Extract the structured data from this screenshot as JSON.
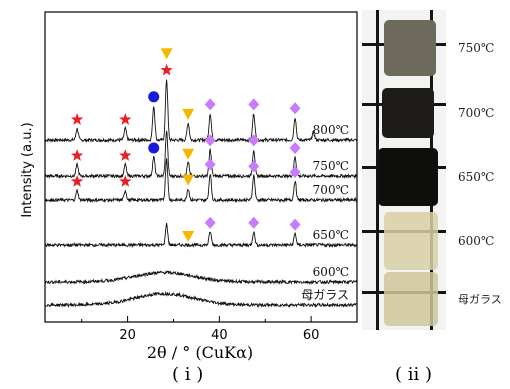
{
  "chart_data": {
    "type": "line",
    "ylabel": "Intensity (a.u.)",
    "xlabel": "2θ / ° (CuKα)",
    "xlim": [
      2,
      70
    ],
    "xticks": [
      20,
      40,
      60
    ],
    "series": [
      {
        "name": "800℃",
        "peaks": [
          {
            "x": 9,
            "h": 0.3
          },
          {
            "x": 19.5,
            "h": 0.3
          },
          {
            "x": 25.7,
            "h": 0.9
          },
          {
            "x": 28.5,
            "h": 1.6
          },
          {
            "x": 33.2,
            "h": 0.45
          },
          {
            "x": 38,
            "h": 0.7
          },
          {
            "x": 47.5,
            "h": 0.7
          },
          {
            "x": 56.5,
            "h": 0.6
          },
          {
            "x": 60.5,
            "h": 0.2
          }
        ]
      },
      {
        "name": "750℃",
        "peaks": [
          {
            "x": 9,
            "h": 0.3
          },
          {
            "x": 19.5,
            "h": 0.3
          },
          {
            "x": 25.7,
            "h": 0.5
          },
          {
            "x": 28.5,
            "h": 1.2
          },
          {
            "x": 33.2,
            "h": 0.35
          },
          {
            "x": 38,
            "h": 0.7
          },
          {
            "x": 47.5,
            "h": 0.7
          },
          {
            "x": 56.5,
            "h": 0.5
          }
        ]
      },
      {
        "name": "700℃",
        "peaks": [
          {
            "x": 9,
            "h": 0.25
          },
          {
            "x": 19.5,
            "h": 0.25
          },
          {
            "x": 28.5,
            "h": 1.1
          },
          {
            "x": 33.2,
            "h": 0.3
          },
          {
            "x": 38,
            "h": 0.7
          },
          {
            "x": 47.5,
            "h": 0.65
          },
          {
            "x": 56.5,
            "h": 0.5
          }
        ]
      },
      {
        "name": "650℃",
        "peaks": [
          {
            "x": 28.5,
            "h": 0.55
          },
          {
            "x": 38,
            "h": 0.35
          },
          {
            "x": 47.5,
            "h": 0.35
          },
          {
            "x": 56.5,
            "h": 0.3
          }
        ]
      },
      {
        "name": "600℃",
        "peaks": [],
        "halo": 0.25
      },
      {
        "name": "母ガラス",
        "peaks": [],
        "halo": 0.3
      }
    ],
    "markers": [
      {
        "shape": "star",
        "color": "#e8202a",
        "x": 9,
        "series": 0
      },
      {
        "shape": "star",
        "color": "#e8202a",
        "x": 19.5,
        "series": 0
      },
      {
        "shape": "circle",
        "color": "#1a1adc",
        "x": 25.7,
        "series": 0
      },
      {
        "shape": "star",
        "color": "#e8202a",
        "x": 28.5,
        "series": 0
      },
      {
        "shape": "triangle",
        "color": "#f5b800",
        "x": 28.5,
        "series": 0,
        "above": true
      },
      {
        "shape": "triangle",
        "color": "#f5b800",
        "x": 33.2,
        "series": 0
      },
      {
        "shape": "diamond",
        "color": "#c77dfa",
        "x": 38,
        "series": 0
      },
      {
        "shape": "diamond",
        "color": "#c77dfa",
        "x": 47.5,
        "series": 0
      },
      {
        "shape": "diamond",
        "color": "#c77dfa",
        "x": 56.5,
        "series": 0
      },
      {
        "shape": "star",
        "color": "#e8202a",
        "x": 9,
        "series": 1
      },
      {
        "shape": "star",
        "color": "#e8202a",
        "x": 19.5,
        "series": 1
      },
      {
        "shape": "circle",
        "color": "#1a1adc",
        "x": 25.7,
        "series": 1
      },
      {
        "shape": "triangle",
        "color": "#f5b800",
        "x": 33.2,
        "series": 1
      },
      {
        "shape": "diamond",
        "color": "#c77dfa",
        "x": 38,
        "series": 1
      },
      {
        "shape": "diamond",
        "color": "#c77dfa",
        "x": 47.5,
        "series": 1
      },
      {
        "shape": "diamond",
        "color": "#c77dfa",
        "x": 56.5,
        "series": 1
      },
      {
        "shape": "star",
        "color": "#e8202a",
        "x": 9,
        "series": 2
      },
      {
        "shape": "star",
        "color": "#e8202a",
        "x": 19.5,
        "series": 2
      },
      {
        "shape": "triangle",
        "color": "#f5b800",
        "x": 33.2,
        "series": 2
      },
      {
        "shape": "diamond",
        "color": "#c77dfa",
        "x": 38,
        "series": 2
      },
      {
        "shape": "diamond",
        "color": "#c77dfa",
        "x": 47.5,
        "series": 2
      },
      {
        "shape": "diamond",
        "color": "#c77dfa",
        "x": 56.5,
        "series": 2
      },
      {
        "shape": "triangle",
        "color": "#f5b800",
        "x": 33.2,
        "series": 3
      },
      {
        "shape": "diamond",
        "color": "#c77dfa",
        "x": 38,
        "series": 3
      },
      {
        "shape": "diamond",
        "color": "#c77dfa",
        "x": 47.5,
        "series": 3
      },
      {
        "shape": "diamond",
        "color": "#c77dfa",
        "x": 56.5,
        "series": 3
      }
    ]
  },
  "panel_labels": {
    "left": "( i )",
    "right": "( ii )"
  },
  "photo": {
    "samples": [
      {
        "label": "750℃",
        "color": "#6d6a5c"
      },
      {
        "label": "700℃",
        "color": "#1d1c1a"
      },
      {
        "label": "650℃",
        "color": "#0e0e0d"
      },
      {
        "label": "600℃",
        "color": "#d8cfa7"
      },
      {
        "label": "母ガラス",
        "color": "#cfc69a"
      }
    ]
  }
}
